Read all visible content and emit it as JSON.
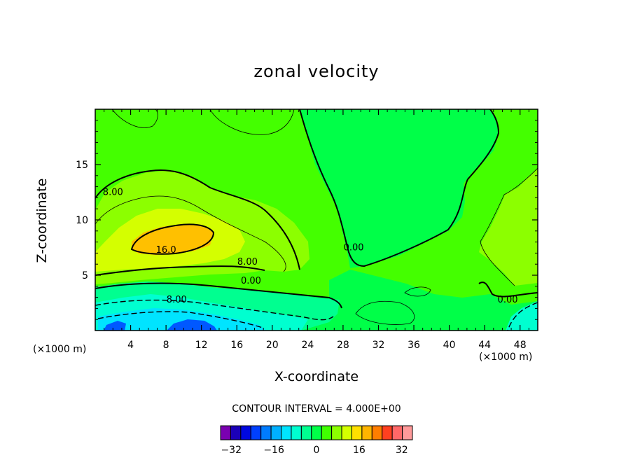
{
  "chart_data": {
    "type": "contour",
    "title": "zonal velocity",
    "xlabel": "X-coordinate",
    "ylabel": "Z-coordinate",
    "x_unit_note": "(×1000 m)",
    "xlim": [
      0,
      50
    ],
    "ylim": [
      0,
      20
    ],
    "x_ticks": [
      4,
      8,
      12,
      16,
      20,
      24,
      28,
      32,
      36,
      40,
      44,
      48
    ],
    "y_ticks": [
      5,
      10,
      15
    ],
    "contour_interval_label": "CONTOUR INTERVAL = 4.000E+00",
    "contour_labels": [
      {
        "text": "8.00",
        "x": 2,
        "y": 12.3
      },
      {
        "text": "16.0",
        "x": 8,
        "y": 7.1
      },
      {
        "text": "8.00",
        "x": 17.2,
        "y": 6.0
      },
      {
        "text": "0.00",
        "x": 17.6,
        "y": 4.3
      },
      {
        "text": "8.00",
        "x": 9.2,
        "y": 2.6
      },
      {
        "text": "0.00",
        "x": 29.2,
        "y": 7.3
      },
      {
        "text": "0.00",
        "x": 46.6,
        "y": 2.6
      }
    ],
    "colorbar": {
      "levels": [
        -36,
        -32,
        -28,
        -24,
        -20,
        -16,
        -12,
        -8,
        -4,
        0,
        4,
        8,
        12,
        16,
        20,
        24,
        28,
        32,
        36
      ],
      "tick_labels": [
        "−32",
        "−16",
        "0",
        "16",
        "32"
      ],
      "tick_values": [
        -32,
        -16,
        0,
        16,
        32
      ],
      "colors": [
        "#7a00b0",
        "#1b00b8",
        "#0008e0",
        "#0040ff",
        "#007cff",
        "#00b0ff",
        "#00e4ff",
        "#00ffd0",
        "#00ff90",
        "#00ff48",
        "#40ff00",
        "#8cff00",
        "#d4ff00",
        "#ffe000",
        "#ffb400",
        "#ff7e00",
        "#ff4020",
        "#ff6868",
        "#ff9a9a"
      ]
    },
    "grid": false
  },
  "colors": {
    "field_base": "#44ff00",
    "zero_region": "#00ff48",
    "band_8": "#8cff00",
    "band_12": "#d4ff00",
    "band_16": "#ffc000",
    "negative_light": "#00ff90",
    "negative_mid": "#00ffd0",
    "negative_strong": "#00e4ff",
    "negative_max": "#0058ff"
  }
}
